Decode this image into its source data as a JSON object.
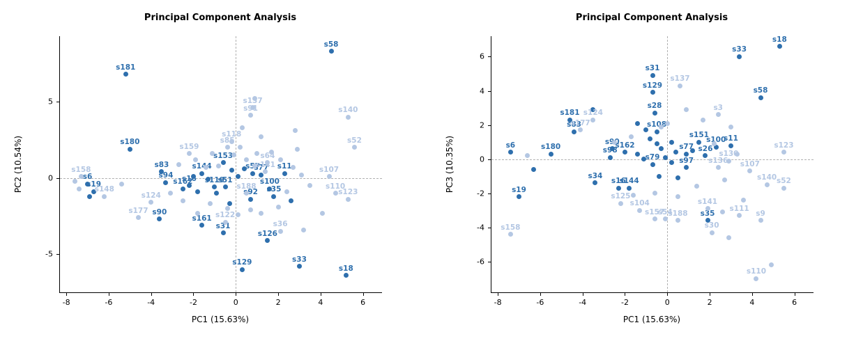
{
  "page": {
    "background": "#ffffff"
  },
  "colors": {
    "dark_point": "#2e6fad",
    "light_point": "#b4c7e3",
    "axis": "#000000",
    "zero_line": "#b0b0b0",
    "text": "#000000"
  },
  "chart_data": [
    {
      "type": "scatter",
      "title": "Principal Component Analysis",
      "xlabel": "PC1 (15.63%)",
      "ylabel": "PC2 (10.54%)",
      "xlim": [
        -8.3,
        6.9
      ],
      "ylim": [
        -7.5,
        9.3
      ],
      "x_ticks": [
        -8,
        -6,
        -4,
        -2,
        0,
        2,
        4,
        6
      ],
      "y_ticks": [
        -5,
        0,
        5
      ],
      "zero_lines": true,
      "grid": false,
      "legend": "none",
      "series": [
        {
          "name": "highlighted-samples",
          "color": "dark",
          "points": [
            {
              "x": 4.5,
              "y": 8.3,
              "label": "s58"
            },
            {
              "x": -5.2,
              "y": 6.8,
              "label": "s181"
            },
            {
              "x": -5.0,
              "y": 1.9,
              "label": "s180"
            },
            {
              "x": -3.5,
              "y": 0.4,
              "label": "s83"
            },
            {
              "x": -3.3,
              "y": -0.3,
              "label": "s94"
            },
            {
              "x": -2.5,
              "y": -0.7,
              "label": "s162"
            },
            {
              "x": -2.2,
              "y": -0.5,
              "label": "s16"
            },
            {
              "x": -1.6,
              "y": 0.3,
              "label": "s144"
            },
            {
              "x": -1.0,
              "y": -0.6,
              "label": "s119"
            },
            {
              "x": -0.5,
              "y": -0.6,
              "label": "s51"
            },
            {
              "x": -0.6,
              "y": 1.0,
              "label": "s153"
            },
            {
              "x": 0.8,
              "y": 0.3,
              "label": "s57"
            },
            {
              "x": 1.2,
              "y": 0.2,
              "label": "s77"
            },
            {
              "x": 2.3,
              "y": 0.3,
              "label": "s11"
            },
            {
              "x": 1.6,
              "y": -0.7,
              "label": "s100"
            },
            {
              "x": 1.8,
              "y": -1.2,
              "label": "s35"
            },
            {
              "x": 0.7,
              "y": -1.4,
              "label": "s92"
            },
            {
              "x": -7.0,
              "y": -0.4,
              "label": "s6"
            },
            {
              "x": -6.7,
              "y": -0.9,
              "label": "s19"
            },
            {
              "x": -3.6,
              "y": -2.7,
              "label": "s90"
            },
            {
              "x": -1.6,
              "y": -3.1,
              "label": "s161"
            },
            {
              "x": -0.6,
              "y": -3.6,
              "label": "s31"
            },
            {
              "x": 1.5,
              "y": -4.1,
              "label": "s126"
            },
            {
              "x": 0.3,
              "y": -6.0,
              "label": "s129"
            },
            {
              "x": 3.0,
              "y": -5.8,
              "label": "s33"
            },
            {
              "x": 5.2,
              "y": -6.4,
              "label": "s18"
            },
            {
              "x": -6.9,
              "y": -1.2
            },
            {
              "x": -2.0,
              "y": 0.1
            },
            {
              "x": -1.3,
              "y": -0.1
            },
            {
              "x": -0.9,
              "y": -1.0
            },
            {
              "x": -0.2,
              "y": 0.5
            },
            {
              "x": 0.1,
              "y": 0.1
            },
            {
              "x": 0.4,
              "y": 0.6
            },
            {
              "x": 2.6,
              "y": -1.5
            },
            {
              "x": -0.3,
              "y": -1.7
            },
            {
              "x": -1.8,
              "y": -0.9
            }
          ]
        },
        {
          "name": "background-samples",
          "color": "light",
          "points": [
            {
              "x": 0.8,
              "y": 4.6,
              "label": "s137"
            },
            {
              "x": 0.7,
              "y": 4.1,
              "label": "s91"
            },
            {
              "x": 5.3,
              "y": 4.0,
              "label": "s140"
            },
            {
              "x": 5.6,
              "y": 2.0,
              "label": "s52"
            },
            {
              "x": -0.2,
              "y": 2.4,
              "label": "s118"
            },
            {
              "x": -0.4,
              "y": 2.0,
              "label": "s85"
            },
            {
              "x": -2.2,
              "y": 1.6,
              "label": "s159"
            },
            {
              "x": 1.5,
              "y": 1.0,
              "label": "s64"
            },
            {
              "x": 1.4,
              "y": 0.4,
              "label": "s141"
            },
            {
              "x": 4.4,
              "y": 0.1,
              "label": "s107"
            },
            {
              "x": -7.3,
              "y": 0.1,
              "label": "s158"
            },
            {
              "x": -6.2,
              "y": -1.2,
              "label": "s148"
            },
            {
              "x": 0.5,
              "y": -1.0,
              "label": "s188"
            },
            {
              "x": 4.7,
              "y": -1.0,
              "label": "s110"
            },
            {
              "x": 5.3,
              "y": -1.4,
              "label": "s123"
            },
            {
              "x": -4.0,
              "y": -1.6,
              "label": "s124"
            },
            {
              "x": -4.6,
              "y": -2.6,
              "label": "s177"
            },
            {
              "x": -0.5,
              "y": -2.9,
              "label": "s122"
            },
            {
              "x": 2.1,
              "y": -3.5,
              "label": "s36"
            },
            {
              "x": 0.9,
              "y": 5.2
            },
            {
              "x": -7.6,
              "y": -0.2
            },
            {
              "x": -7.4,
              "y": -0.7
            },
            {
              "x": -5.4,
              "y": -0.4
            },
            {
              "x": -2.7,
              "y": 0.9
            },
            {
              "x": -1.9,
              "y": 1.2
            },
            {
              "x": -1.4,
              "y": 0.7
            },
            {
              "x": -1.1,
              "y": 1.6
            },
            {
              "x": -0.8,
              "y": 0.8
            },
            {
              "x": -0.1,
              "y": 1.5
            },
            {
              "x": 0.2,
              "y": 2.0
            },
            {
              "x": 0.5,
              "y": 1.2
            },
            {
              "x": 0.9,
              "y": 0.8
            },
            {
              "x": 1.0,
              "y": 1.6
            },
            {
              "x": 1.2,
              "y": 2.7
            },
            {
              "x": 1.7,
              "y": 1.7
            },
            {
              "x": 2.1,
              "y": 1.2
            },
            {
              "x": 2.7,
              "y": 0.7
            },
            {
              "x": 3.1,
              "y": 0.2
            },
            {
              "x": 3.5,
              "y": -0.5
            },
            {
              "x": 2.4,
              "y": -0.9
            },
            {
              "x": 2.0,
              "y": -1.9
            },
            {
              "x": 1.2,
              "y": -2.3
            },
            {
              "x": 0.7,
              "y": -2.1
            },
            {
              "x": 0.1,
              "y": -2.4
            },
            {
              "x": -0.4,
              "y": -2.0
            },
            {
              "x": -1.2,
              "y": -1.7
            },
            {
              "x": -1.8,
              "y": -2.3
            },
            {
              "x": -2.5,
              "y": -1.5
            },
            {
              "x": -3.1,
              "y": -1.0
            },
            {
              "x": 4.1,
              "y": -2.3
            },
            {
              "x": 3.2,
              "y": -3.4
            },
            {
              "x": 2.9,
              "y": 1.9
            },
            {
              "x": 2.8,
              "y": 3.1
            },
            {
              "x": 0.3,
              "y": 3.3
            }
          ]
        }
      ]
    },
    {
      "type": "scatter",
      "title": "Principal Component Analysis",
      "xlabel": "PC1 (15.63%)",
      "ylabel": "PC3 (10.35%)",
      "xlim": [
        -8.3,
        6.9
      ],
      "ylim": [
        -7.8,
        7.2
      ],
      "x_ticks": [
        -8,
        -6,
        -4,
        -2,
        0,
        2,
        4,
        6
      ],
      "y_ticks": [
        -6,
        -4,
        -2,
        0,
        2,
        4,
        6
      ],
      "zero_lines": true,
      "grid": false,
      "legend": "none",
      "series": [
        {
          "name": "highlighted-samples",
          "color": "dark",
          "points": [
            {
              "x": 5.3,
              "y": 6.6,
              "label": "s18"
            },
            {
              "x": 3.4,
              "y": 6.0,
              "label": "s33"
            },
            {
              "x": -0.7,
              "y": 4.9,
              "label": "s31"
            },
            {
              "x": -0.7,
              "y": 3.9,
              "label": "s129"
            },
            {
              "x": 4.4,
              "y": 3.6,
              "label": "s58"
            },
            {
              "x": -0.6,
              "y": 2.7,
              "label": "s28"
            },
            {
              "x": -4.6,
              "y": 2.3,
              "label": "s181"
            },
            {
              "x": -4.4,
              "y": 1.6,
              "label": "s83"
            },
            {
              "x": -0.5,
              "y": 1.6,
              "label": "s108"
            },
            {
              "x": 1.5,
              "y": 1.0,
              "label": "s151"
            },
            {
              "x": 2.3,
              "y": 0.7,
              "label": "s100"
            },
            {
              "x": 3.0,
              "y": 0.8,
              "label": "s11"
            },
            {
              "x": -2.6,
              "y": 0.6,
              "label": "s90"
            },
            {
              "x": -2.7,
              "y": 0.1,
              "label": "s98"
            },
            {
              "x": -2.0,
              "y": 0.4,
              "label": "s162"
            },
            {
              "x": -5.5,
              "y": 0.3,
              "label": "s180"
            },
            {
              "x": -7.4,
              "y": 0.4,
              "label": "s6"
            },
            {
              "x": 0.9,
              "y": 0.3,
              "label": "s77"
            },
            {
              "x": 1.8,
              "y": 0.2,
              "label": "s26"
            },
            {
              "x": 0.9,
              "y": -0.5,
              "label": "s97"
            },
            {
              "x": -0.7,
              "y": -0.3,
              "label": "s79"
            },
            {
              "x": -7.0,
              "y": -2.2,
              "label": "s19"
            },
            {
              "x": -3.4,
              "y": -1.4,
              "label": "s34"
            },
            {
              "x": -2.3,
              "y": -1.7,
              "label": "s16"
            },
            {
              "x": -1.8,
              "y": -1.7,
              "label": "s144"
            },
            {
              "x": 1.9,
              "y": -3.6,
              "label": "s35"
            },
            {
              "x": -3.5,
              "y": 2.9
            },
            {
              "x": -1.4,
              "y": 2.1
            },
            {
              "x": -1.0,
              "y": 1.7
            },
            {
              "x": -0.8,
              "y": 1.2
            },
            {
              "x": -0.5,
              "y": 0.9
            },
            {
              "x": -0.3,
              "y": 0.6
            },
            {
              "x": -0.1,
              "y": 0.1
            },
            {
              "x": -1.1,
              "y": 0.0
            },
            {
              "x": -1.4,
              "y": 0.3
            },
            {
              "x": 0.2,
              "y": 1.0
            },
            {
              "x": 0.4,
              "y": 0.4
            },
            {
              "x": 0.2,
              "y": -0.2
            },
            {
              "x": 1.2,
              "y": 0.5
            },
            {
              "x": -0.4,
              "y": -1.0
            },
            {
              "x": 0.5,
              "y": -1.1
            },
            {
              "x": -6.3,
              "y": -0.6
            }
          ]
        },
        {
          "name": "background-samples",
          "color": "light",
          "points": [
            {
              "x": 0.6,
              "y": 4.3,
              "label": "s137"
            },
            {
              "x": -3.5,
              "y": 2.3,
              "label": "s124"
            },
            {
              "x": -4.1,
              "y": 1.7,
              "label": "s177"
            },
            {
              "x": 2.4,
              "y": 2.6,
              "label": "s3"
            },
            {
              "x": 5.5,
              "y": 0.4,
              "label": "s123"
            },
            {
              "x": 2.9,
              "y": -0.1,
              "label": "s130"
            },
            {
              "x": 2.4,
              "y": -0.5,
              "label": "s136"
            },
            {
              "x": 3.9,
              "y": -0.7,
              "label": "s107"
            },
            {
              "x": 4.7,
              "y": -1.5,
              "label": "s140"
            },
            {
              "x": 5.5,
              "y": -1.7,
              "label": "s52"
            },
            {
              "x": -2.2,
              "y": -2.6,
              "label": "s125"
            },
            {
              "x": -1.3,
              "y": -3.0,
              "label": "s104"
            },
            {
              "x": 1.9,
              "y": -2.9,
              "label": "s141"
            },
            {
              "x": 3.4,
              "y": -3.3,
              "label": "s111"
            },
            {
              "x": 4.4,
              "y": -3.6,
              "label": "s9"
            },
            {
              "x": -0.6,
              "y": -3.5,
              "label": "s157"
            },
            {
              "x": -0.1,
              "y": -3.5,
              "label": "s54"
            },
            {
              "x": 0.5,
              "y": -3.6,
              "label": "s188"
            },
            {
              "x": -7.4,
              "y": -4.4,
              "label": "s158"
            },
            {
              "x": 4.2,
              "y": -7.0,
              "label": "s110"
            },
            {
              "x": 2.1,
              "y": -4.3,
              "label": "s30"
            },
            {
              "x": 0.9,
              "y": 2.9
            },
            {
              "x": 1.7,
              "y": 2.3
            },
            {
              "x": 3.0,
              "y": 1.9
            },
            {
              "x": -2.5,
              "y": 1.0
            },
            {
              "x": -1.7,
              "y": 1.3
            },
            {
              "x": 2.2,
              "y": 0.9
            },
            {
              "x": 3.3,
              "y": 0.3
            },
            {
              "x": 2.7,
              "y": -1.2
            },
            {
              "x": 1.4,
              "y": -1.6
            },
            {
              "x": 0.5,
              "y": -2.2
            },
            {
              "x": -0.6,
              "y": -2.0
            },
            {
              "x": -1.6,
              "y": -2.1
            },
            {
              "x": 3.6,
              "y": -2.4
            },
            {
              "x": 2.6,
              "y": -3.1
            },
            {
              "x": 2.9,
              "y": -4.6
            },
            {
              "x": 4.9,
              "y": -6.2
            },
            {
              "x": -6.6,
              "y": 0.2
            },
            {
              "x": 0.0,
              "y": 2.1
            },
            {
              "x": -0.3,
              "y": 1.9
            }
          ]
        }
      ]
    }
  ]
}
